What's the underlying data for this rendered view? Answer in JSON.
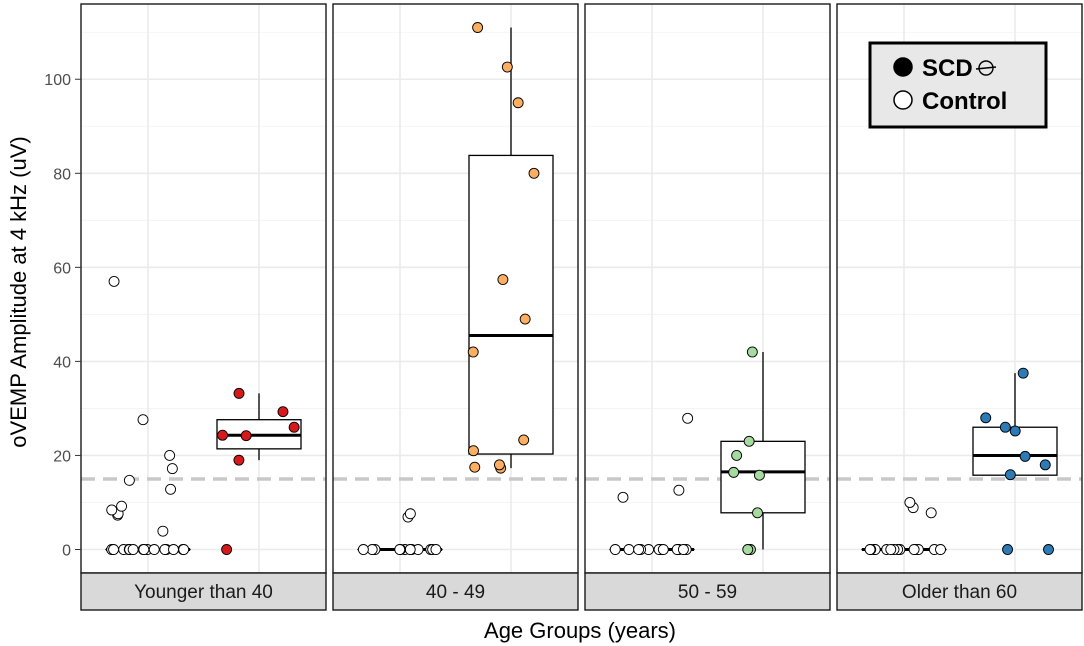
{
  "chart_data": {
    "type": "box+jitter (faceted)",
    "ylabel": "oVEMP Amplitude at 4 kHz (uV)",
    "xlabel": "Age Groups (years)",
    "ylim": [
      -5,
      116
    ],
    "y_ticks": [
      0,
      20,
      40,
      60,
      80,
      100
    ],
    "threshold": 15,
    "groups": [
      "Control",
      "SCD"
    ],
    "legend": {
      "placement": "top-right of last panel",
      "items": [
        {
          "label": "SCD",
          "fill": "#000000",
          "strikethrough_symbol": true
        },
        {
          "label": "Control",
          "fill": "#ffffff"
        }
      ]
    },
    "panels": [
      {
        "label": "Younger than 40",
        "control": {
          "median": 0,
          "q1": 0,
          "q3": 0,
          "whisker_low": 0,
          "whisker_high": 0,
          "points": [
            0,
            0,
            0,
            0,
            0,
            0,
            0,
            0,
            0,
            0,
            0,
            0,
            0,
            0,
            0,
            0,
            3.9,
            7.3,
            7.6,
            8.4,
            9.2,
            12.8,
            14.7,
            17.2,
            20.0,
            27.6,
            57.0
          ]
        },
        "scd": {
          "color": "#d7191c",
          "median": 24.3,
          "q1": 21.4,
          "q3": 27.6,
          "whisker_low": 19.0,
          "whisker_high": 33.2,
          "points": [
            0,
            19.0,
            24.2,
            24.3,
            26.0,
            29.3,
            33.2
          ]
        }
      },
      {
        "label": "40 - 49",
        "control": {
          "median": 0,
          "q1": 0,
          "q3": 0,
          "whisker_low": 0,
          "whisker_high": 0,
          "points": [
            0,
            0,
            0,
            0,
            0,
            0,
            0,
            0,
            0,
            0,
            0,
            0,
            0,
            6.9,
            7.6
          ]
        },
        "scd": {
          "color": "#fdae61",
          "median": 45.5,
          "q1": 20.3,
          "q3": 83.8,
          "whisker_low": 17.3,
          "whisker_high": 111.0,
          "points": [
            17.3,
            17.5,
            18.0,
            21.0,
            23.3,
            42.0,
            49.0,
            57.4,
            80.0,
            95.0,
            102.6,
            111.0
          ]
        }
      },
      {
        "label": "50 - 59",
        "control": {
          "median": 0,
          "q1": 0,
          "q3": 0,
          "whisker_low": 0,
          "whisker_high": 0,
          "points": [
            0,
            0,
            0,
            0,
            0,
            0,
            0,
            0,
            0,
            0,
            0,
            0,
            0,
            11.1,
            12.6,
            27.9
          ]
        },
        "scd": {
          "color": "#a6dba0",
          "median": 16.5,
          "q1": 7.8,
          "q3": 23.0,
          "whisker_low": 0,
          "whisker_high": 42.0,
          "points": [
            0,
            0,
            7.8,
            15.8,
            16.4,
            20.0,
            23.0,
            42.0
          ]
        }
      },
      {
        "label": "Older than 60",
        "control": {
          "median": 0,
          "q1": 0,
          "q3": 0,
          "whisker_low": 0,
          "whisker_high": 0,
          "points": [
            0,
            0,
            0,
            0,
            0,
            0,
            0,
            0,
            0,
            0,
            0,
            0,
            0,
            0,
            7.8,
            8.9,
            10.0
          ]
        },
        "scd": {
          "color": "#2c7bb6",
          "median": 20.0,
          "q1": 15.8,
          "q3": 26.0,
          "whisker_low": 15.8,
          "whisker_high": 37.5,
          "points": [
            0,
            0,
            15.9,
            18.0,
            19.8,
            25.2,
            26.0,
            28.0,
            37.5
          ]
        }
      }
    ]
  }
}
